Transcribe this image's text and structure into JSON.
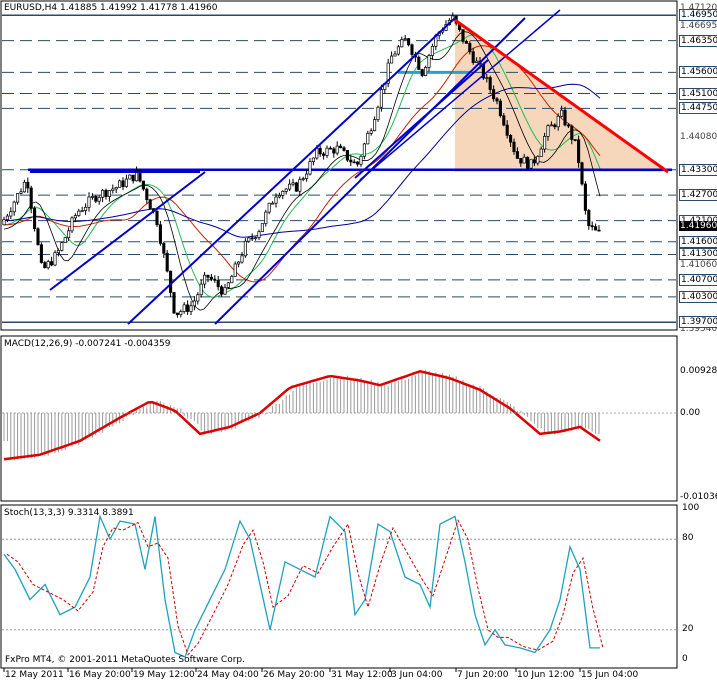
{
  "main": {
    "header": "EURUSD,H4  1.41885 1.41992 1.41778 1.41960",
    "price_axis": {
      "plain_ticks": [
        "1.47120",
        "1.46695",
        "1.46350",
        "1.45600",
        "1.45100",
        "1.44750",
        "1.44080",
        "1.43300",
        "1.42700",
        "1.42100",
        "1.41600",
        "1.41300",
        "1.41060",
        "1.40700",
        "1.40300",
        "1.39700",
        "1.39540"
      ],
      "boxed_levels": [
        "1.46950",
        "1.46350",
        "1.45600",
        "1.45100",
        "1.44750",
        "1.43300",
        "1.42700",
        "1.42100",
        "1.41600",
        "1.41300",
        "1.40700",
        "1.40300",
        "1.39700"
      ],
      "current": "1.41960"
    }
  },
  "macd": {
    "header": "MACD(12,26,9) -0.007241 -0.004359",
    "ticks": [
      "0.00928",
      "0.00",
      "-0.01036"
    ]
  },
  "stoch": {
    "header": "Stoch(13,3,3) 9.3314 8.3891",
    "ticks": [
      "100",
      "80",
      "20",
      "0"
    ]
  },
  "x_axis": {
    "labels": [
      "12 May 2011",
      "16 May 20:00",
      "19 May 12:00",
      "24 May 04:00",
      "26 May 20:00",
      "31 May 12:00",
      "3 Jun 04:00",
      "7 Jun 20:00",
      "10 Jun 12:00",
      "15 Jun 04:00"
    ]
  },
  "copyright": "FxPro MT4, © 2001-2011 MetaQuotes Software Corp.",
  "colors": {
    "candles": "#000000",
    "channel": "#0000cc",
    "triangle": "#ff0000",
    "fill": "#f5d0b0",
    "ma_fast": "#22bb55",
    "ma_mid": "#cc2200",
    "ma_slow": "#000099",
    "macd_signal": "#dd0000",
    "stoch_main": "#20a0c0",
    "stoch_signal": "#cc0000"
  }
}
